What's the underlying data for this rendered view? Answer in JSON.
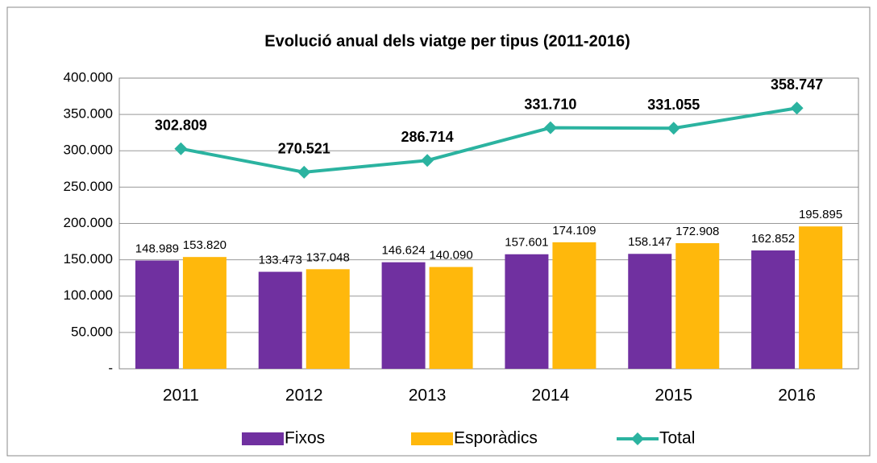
{
  "chart_data": {
    "type": "bar",
    "title": "Evolució anual dels viatge per tipus (2011-2016)",
    "categories": [
      "2011",
      "2012",
      "2013",
      "2014",
      "2015",
      "2016"
    ],
    "series": [
      {
        "name": "Fixos",
        "type": "bar",
        "color": "#7030a0",
        "values": [
          148989,
          133473,
          146624,
          157601,
          158147,
          162852
        ],
        "value_labels": [
          "148.989",
          "133.473",
          "146.624",
          "157.601",
          "158.147",
          "162.852"
        ]
      },
      {
        "name": "Esporàdics",
        "type": "bar",
        "color": "#ffb80c",
        "values": [
          153820,
          137048,
          140090,
          174109,
          172908,
          195895
        ],
        "value_labels": [
          "153.820",
          "137.048",
          "140.090",
          "174.109",
          "172.908",
          "195.895"
        ]
      },
      {
        "name": "Total",
        "type": "line",
        "color": "#2bb3a0",
        "values": [
          302809,
          270521,
          286714,
          331710,
          331055,
          358747
        ],
        "value_labels": [
          "302.809",
          "270.521",
          "286.714",
          "331.710",
          "331.055",
          "358.747"
        ]
      }
    ],
    "ylim": [
      0,
      400000
    ],
    "yticks": [
      {
        "value": 0,
        "label": "-"
      },
      {
        "value": 50000,
        "label": "50.000"
      },
      {
        "value": 100000,
        "label": "100.000"
      },
      {
        "value": 150000,
        "label": "150.000"
      },
      {
        "value": 200000,
        "label": "200.000"
      },
      {
        "value": 250000,
        "label": "250.000"
      },
      {
        "value": 300000,
        "label": "300.000"
      },
      {
        "value": 350000,
        "label": "350.000"
      },
      {
        "value": 400000,
        "label": "400.000"
      }
    ],
    "grid": true,
    "legend": "bottom"
  }
}
